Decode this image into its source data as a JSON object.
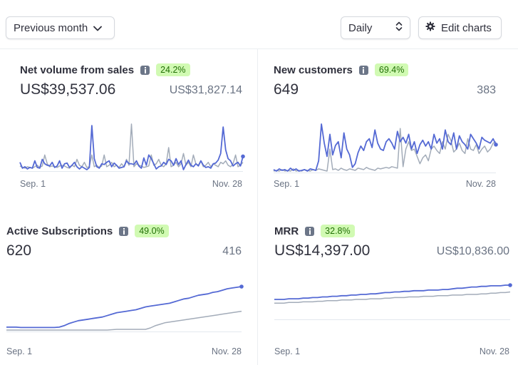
{
  "toolbar": {
    "period_label": "Previous month",
    "interval_label": "Daily",
    "edit_label": "Edit charts"
  },
  "colors": {
    "primary_line": "#5469d4",
    "compare_line": "#a3acb9",
    "badge_bg": "#d1fab3",
    "badge_text": "#217005"
  },
  "charts": [
    {
      "id": "net-volume",
      "title": "Net volume from sales",
      "badge": "24.2%",
      "value": "US$39,537.06",
      "compare_value": "US$31,827.14",
      "x_start": "Sep. 1",
      "x_end": "Nov. 28",
      "chart_data": {
        "type": "line",
        "series": [
          {
            "name": "current",
            "values": [
              10,
              2,
              4,
              1,
              3,
              2,
              12,
              3,
              2,
              14,
              8,
              6,
              5,
              10,
              3,
              5,
              12,
              2,
              8,
              9,
              3,
              6,
              10,
              4,
              1,
              4,
              2,
              0,
              3,
              60,
              15,
              4,
              2,
              8,
              7,
              10,
              12,
              4,
              9,
              6,
              2,
              3,
              4,
              12,
              8,
              8,
              7,
              12,
              5,
              2,
              16,
              6,
              20,
              15,
              8,
              1,
              4,
              5,
              10,
              7,
              14,
              12,
              6,
              15,
              7,
              12,
              0,
              7,
              13,
              6,
              4,
              8,
              5,
              12,
              6,
              3,
              4,
              2,
              8,
              9,
              13,
              22,
              58,
              27,
              15,
              12,
              5,
              8,
              10,
              5,
              18
            ]
          },
          {
            "name": "previous",
            "values": [
              5,
              3,
              2,
              4,
              3,
              2,
              4,
              6,
              3,
              5,
              20,
              8,
              4,
              5,
              4,
              3,
              5,
              6,
              5,
              3,
              2,
              6,
              4,
              14,
              6,
              4,
              10,
              3,
              4,
              20,
              4,
              6,
              3,
              5,
              20,
              4,
              6,
              10,
              4,
              6,
              3,
              8,
              4,
              14,
              6,
              62,
              4,
              8,
              6,
              5,
              3,
              4,
              5,
              20,
              6,
              8,
              14,
              6,
              4,
              8,
              30,
              4,
              6,
              10,
              4,
              8,
              22,
              6,
              10,
              4,
              20,
              8,
              6,
              12,
              4,
              6,
              10,
              4,
              8,
              6,
              4,
              10,
              8,
              12,
              6,
              4,
              8,
              20,
              4,
              6,
              10
            ]
          }
        ]
      }
    },
    {
      "id": "new-customers",
      "title": "New customers",
      "badge": "69.4%",
      "value": "649",
      "compare_value": "383",
      "x_start": "Sep. 1",
      "x_end": "Nov. 28",
      "chart_data": {
        "type": "line",
        "series": [
          {
            "name": "current",
            "values": [
              2,
              0,
              3,
              1,
              2,
              0,
              4,
              1,
              3,
              0,
              1,
              2,
              0,
              3,
              2,
              1,
              14,
              64,
              38,
              20,
              50,
              22,
              35,
              40,
              18,
              52,
              30,
              22,
              5,
              10,
              25,
              34,
              28,
              40,
              44,
              32,
              56,
              38,
              30,
              28,
              40,
              44,
              38,
              30,
              54,
              40,
              46,
              38,
              50,
              30,
              40,
              24,
              36,
              42,
              34,
              40,
              30,
              50,
              38,
              44,
              30,
              56,
              40,
              36,
              52,
              30,
              48,
              40,
              36,
              30,
              50,
              44,
              38,
              30,
              46,
              42,
              40,
              38,
              44,
              36
            ]
          },
          {
            "name": "previous",
            "values": [
              0,
              1,
              0,
              2,
              0,
              1,
              0,
              3,
              0,
              1,
              0,
              2,
              1,
              0,
              2,
              1,
              3,
              2,
              1,
              0,
              30,
              2,
              3,
              1,
              4,
              2,
              1,
              3,
              2,
              1,
              4,
              3,
              2,
              5,
              3,
              2,
              1,
              4,
              3,
              4,
              5,
              4,
              6,
              5,
              4,
              58,
              6,
              30,
              40,
              28,
              30,
              20,
              10,
              18,
              22,
              14,
              30,
              34,
              28,
              24,
              40,
              30,
              50,
              42,
              26,
              30,
              38,
              28,
              24,
              44,
              30,
              28,
              36,
              24,
              30,
              34,
              26,
              30,
              38,
              40
            ]
          }
        ]
      }
    },
    {
      "id": "active-subscriptions",
      "title": "Active Subscriptions",
      "badge": "49.0%",
      "value": "620",
      "compare_value": "416",
      "x_start": "Sep. 1",
      "x_end": "Nov. 28",
      "chart_data": {
        "type": "line",
        "series": [
          {
            "name": "current",
            "values": [
              4,
              4,
              4,
              3.5,
              3.5,
              3.5,
              3.5,
              3.5,
              3.5,
              3.5,
              3.5,
              4,
              6,
              9,
              11,
              13,
              14,
              15,
              16,
              17,
              18,
              20,
              22,
              24,
              25,
              26,
              27,
              28,
              30,
              32,
              33,
              34,
              35,
              36,
              37,
              39,
              41,
              43,
              44,
              46,
              48,
              49,
              50,
              52,
              53,
              55,
              57,
              58,
              59,
              60
            ]
          },
          {
            "name": "previous",
            "values": [
              0,
              0,
              0,
              0,
              0,
              0,
              0,
              0,
              0,
              0,
              0,
              0,
              0,
              0,
              0,
              0,
              0,
              0,
              0,
              0,
              0,
              0,
              0.5,
              1,
              1,
              1,
              1,
              1,
              1,
              1,
              3,
              6,
              8,
              10,
              11,
              12,
              13,
              14,
              15,
              16,
              17,
              18,
              19,
              20,
              21,
              22,
              23,
              24,
              25,
              26
            ]
          }
        ]
      }
    },
    {
      "id": "mrr",
      "title": "MRR",
      "badge": "32.8%",
      "value": "US$14,397.00",
      "compare_value": "US$10,836.00",
      "x_start": "Sep. 1",
      "x_end": "Nov. 28",
      "chart_data": {
        "type": "line",
        "series": [
          {
            "name": "current",
            "values": [
              30,
              30,
              30,
              31,
              31,
              31,
              32,
              32,
              33,
              33,
              34,
              34,
              35,
              35,
              36,
              36,
              37,
              37,
              38,
              38,
              39,
              39,
              40,
              41,
              41,
              42,
              42,
              43,
              43,
              44,
              44,
              44,
              45,
              45,
              45,
              46,
              46,
              47,
              48,
              48,
              49,
              50,
              50,
              51,
              51,
              52,
              52,
              52,
              53,
              53
            ]
          },
          {
            "name": "previous",
            "values": [
              24,
              24,
              24,
              25,
              25,
              25,
              26,
              26,
              26,
              27,
              27,
              28,
              28,
              28,
              29,
              29,
              29,
              30,
              30,
              30,
              31,
              31,
              31,
              32,
              32,
              33,
              33,
              33,
              34,
              34,
              34,
              35,
              35,
              35,
              36,
              36,
              36,
              37,
              37,
              37,
              38,
              38,
              38,
              39,
              39,
              40,
              40,
              41,
              41,
              42
            ]
          }
        ]
      }
    }
  ]
}
